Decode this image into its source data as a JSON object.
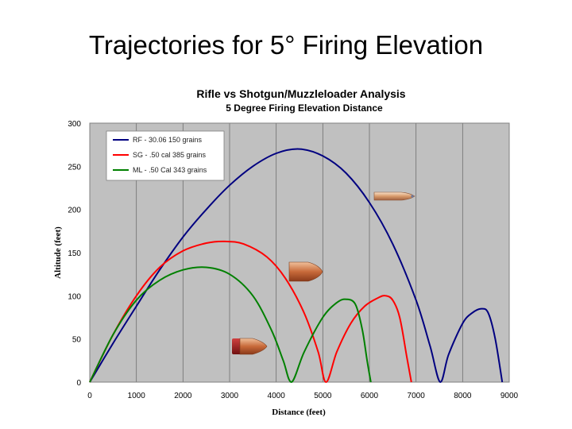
{
  "slide": {
    "title": "Trajectories for 5° Firing Elevation"
  },
  "chart_data": {
    "type": "line",
    "title": "Rifle vs Shotgun/Muzzleloader Analysis",
    "subtitle": "5 Degree Firing Elevation Distance",
    "xlabel": "Distance (feet)",
    "ylabel": "Altitude (feet)",
    "xlim": [
      0,
      9000
    ],
    "ylim": [
      0,
      300
    ],
    "xticks": [
      0,
      1000,
      2000,
      3000,
      4000,
      5000,
      6000,
      7000,
      8000,
      9000
    ],
    "yticks": [
      0,
      50,
      100,
      150,
      200,
      250,
      300
    ],
    "grid": "vertical",
    "legend": "top-left",
    "plot_background": "#c0c0c0",
    "series": [
      {
        "name": "RF - 30.06 150 grains",
        "color": "#000080",
        "points": [
          [
            0,
            0
          ],
          [
            500,
            45
          ],
          [
            1000,
            88
          ],
          [
            1500,
            130
          ],
          [
            2000,
            168
          ],
          [
            2500,
            200
          ],
          [
            3000,
            228
          ],
          [
            3500,
            250
          ],
          [
            4000,
            265
          ],
          [
            4500,
            270
          ],
          [
            5000,
            262
          ],
          [
            5500,
            242
          ],
          [
            6000,
            208
          ],
          [
            6500,
            160
          ],
          [
            7000,
            95
          ],
          [
            7300,
            42
          ],
          [
            7520,
            0
          ],
          [
            7700,
            32
          ],
          [
            8000,
            68
          ],
          [
            8200,
            80
          ],
          [
            8400,
            85
          ],
          [
            8550,
            80
          ],
          [
            8700,
            50
          ],
          [
            8850,
            0
          ]
        ]
      },
      {
        "name": "SG - .50 cal 385 grains",
        "color": "#ff0000",
        "points": [
          [
            0,
            0
          ],
          [
            500,
            55
          ],
          [
            1000,
            100
          ],
          [
            1500,
            133
          ],
          [
            2000,
            152
          ],
          [
            2500,
            161
          ],
          [
            2900,
            163
          ],
          [
            3300,
            160
          ],
          [
            3800,
            145
          ],
          [
            4200,
            120
          ],
          [
            4600,
            80
          ],
          [
            4900,
            35
          ],
          [
            5070,
            0
          ],
          [
            5300,
            35
          ],
          [
            5600,
            68
          ],
          [
            5900,
            88
          ],
          [
            6200,
            98
          ],
          [
            6350,
            100
          ],
          [
            6500,
            95
          ],
          [
            6650,
            75
          ],
          [
            6800,
            30
          ],
          [
            6900,
            0
          ]
        ]
      },
      {
        "name": "ML - .50 Cal 343 grains",
        "color": "#008000",
        "points": [
          [
            0,
            0
          ],
          [
            500,
            55
          ],
          [
            1000,
            95
          ],
          [
            1500,
            118
          ],
          [
            2000,
            130
          ],
          [
            2500,
            133
          ],
          [
            3000,
            125
          ],
          [
            3500,
            100
          ],
          [
            3900,
            60
          ],
          [
            4150,
            25
          ],
          [
            4330,
            0
          ],
          [
            4600,
            35
          ],
          [
            5000,
            75
          ],
          [
            5300,
            92
          ],
          [
            5500,
            96
          ],
          [
            5700,
            90
          ],
          [
            5850,
            60
          ],
          [
            5950,
            25
          ],
          [
            6030,
            0
          ]
        ]
      }
    ]
  }
}
